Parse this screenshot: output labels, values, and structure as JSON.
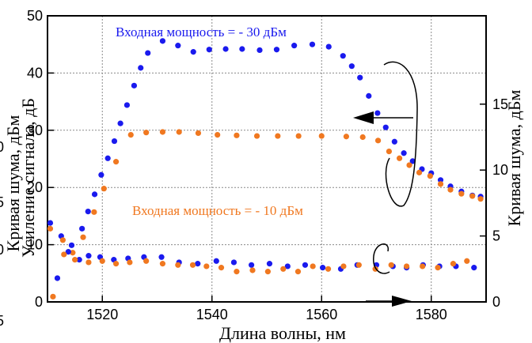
{
  "chart_data": {
    "type": "scatter",
    "xlabel": "Длина волны, нм",
    "ylabel_left": "Усиление сигнала, дБ",
    "ylabel_left_overlap": "Кривая шума, дБм",
    "ylabel_right": "Кривая шума, дБм",
    "xlim": [
      1510,
      1590
    ],
    "ylim_left": [
      0,
      50
    ],
    "ylim_right": [
      0,
      21.7
    ],
    "x_ticks": [
      "1520",
      "1540",
      "1560",
      "1580"
    ],
    "x_tick_values": [
      1520,
      1540,
      1560,
      1580
    ],
    "y_left_ticks": [
      "0",
      "10",
      "20",
      "30",
      "40",
      "50"
    ],
    "y_left_tick_values": [
      0,
      10,
      20,
      30,
      40,
      50
    ],
    "y_right_ticks": [
      "0",
      "5",
      "10",
      "15"
    ],
    "y_right_tick_values": [
      0,
      5,
      10,
      15
    ],
    "left_clipped_ticks": [
      "0",
      "5",
      "0",
      "5"
    ],
    "grid": true,
    "annotations": {
      "input_minus30": "Входная мощность = - 30 дБм",
      "input_minus10": "Входная мощность = - 10 дБм"
    },
    "colors": {
      "blue": "#1a1aee",
      "orange": "#f07820"
    },
    "series": [
      {
        "color": "blue",
        "axis": "left",
        "x": [
          1510.5,
          1512.5,
          1514.4,
          1516.3,
          1517.4,
          1518.6,
          1519.8,
          1521.0,
          1522.2,
          1523.3,
          1524.5,
          1525.8,
          1527.0,
          1528.3,
          1531.0,
          1533.8,
          1536.6,
          1539.5,
          1542.5,
          1545.5,
          1548.7,
          1551.8,
          1555.0,
          1558.3,
          1561.3,
          1563.9,
          1565.5,
          1567.0,
          1568.6,
          1570.2,
          1571.7,
          1573.3,
          1575.0,
          1576.6,
          1578.3,
          1580.0,
          1581.7,
          1583.5,
          1585.5,
          1587.5,
          1589.0
        ],
        "y": [
          13.8,
          11.5,
          9.9,
          12.8,
          15.8,
          18.8,
          22.2,
          25.1,
          28.1,
          31.2,
          34.4,
          37.8,
          40.9,
          43.5,
          45.6,
          44.8,
          43.7,
          44.1,
          44.2,
          44.2,
          44.0,
          44.1,
          44.8,
          45.0,
          44.6,
          43.0,
          41.2,
          39.2,
          36.0,
          33.0,
          30.5,
          28.0,
          26.0,
          24.6,
          23.2,
          22.5,
          21.3,
          20.2,
          19.3,
          18.6,
          18.4
        ]
      },
      {
        "color": "orange",
        "axis": "left",
        "x": [
          1510.5,
          1512.8,
          1514.6,
          1516.5,
          1518.5,
          1520.3,
          1522.5,
          1525.2,
          1528.0,
          1531.0,
          1534.0,
          1537.5,
          1541.0,
          1544.5,
          1548.2,
          1552.0,
          1555.8,
          1560.0,
          1564.5,
          1567.5,
          1570.3,
          1572.3,
          1574.2,
          1576.0,
          1577.8,
          1579.8,
          1581.7,
          1583.5,
          1585.5,
          1587.5,
          1589.0
        ],
        "y": [
          12.8,
          10.8,
          8.6,
          11.3,
          15.7,
          19.8,
          24.5,
          29.2,
          29.6,
          29.7,
          29.7,
          29.5,
          29.2,
          29.1,
          29.0,
          29.0,
          29.0,
          29.0,
          28.9,
          28.8,
          28.2,
          26.3,
          25.1,
          23.9,
          22.6,
          22.0,
          20.6,
          19.6,
          18.9,
          18.5,
          18.0
        ]
      },
      {
        "color": "blue",
        "axis": "right",
        "x": [
          1511.8,
          1513.8,
          1515.8,
          1517.5,
          1519.6,
          1522.1,
          1524.7,
          1527.6,
          1530.8,
          1534.0,
          1537.4,
          1540.8,
          1544.0,
          1547.2,
          1550.5,
          1553.8,
          1557.0,
          1560.2,
          1563.5,
          1566.5,
          1570.0,
          1573.0,
          1575.5,
          1578.5,
          1581.5,
          1584.5,
          1587.8
        ],
        "y": [
          1.8,
          3.8,
          3.2,
          3.5,
          3.4,
          3.2,
          3.3,
          3.4,
          3.4,
          3.0,
          2.9,
          3.1,
          3.0,
          2.8,
          2.9,
          2.7,
          2.8,
          2.6,
          2.5,
          2.8,
          2.8,
          2.7,
          2.6,
          2.8,
          2.7,
          2.7,
          2.6
        ]
      },
      {
        "color": "orange",
        "axis": "right",
        "x": [
          1511.0,
          1513.0,
          1515.0,
          1517.5,
          1520.0,
          1522.5,
          1525.0,
          1528.0,
          1531.0,
          1533.8,
          1536.5,
          1539.0,
          1541.7,
          1544.5,
          1547.4,
          1550.2,
          1553.0,
          1555.7,
          1558.4,
          1561.2,
          1564.0,
          1566.8,
          1569.8,
          1572.7,
          1575.5,
          1578.4,
          1581.2,
          1584.0,
          1586.5
        ],
        "y": [
          0.4,
          3.6,
          3.2,
          3.0,
          3.1,
          2.9,
          3.0,
          3.1,
          2.9,
          2.8,
          2.8,
          2.7,
          2.6,
          2.3,
          2.4,
          2.3,
          2.5,
          2.3,
          2.7,
          2.5,
          2.7,
          2.8,
          2.5,
          2.8,
          2.7,
          2.7,
          2.6,
          2.9,
          3.1
        ]
      }
    ]
  }
}
